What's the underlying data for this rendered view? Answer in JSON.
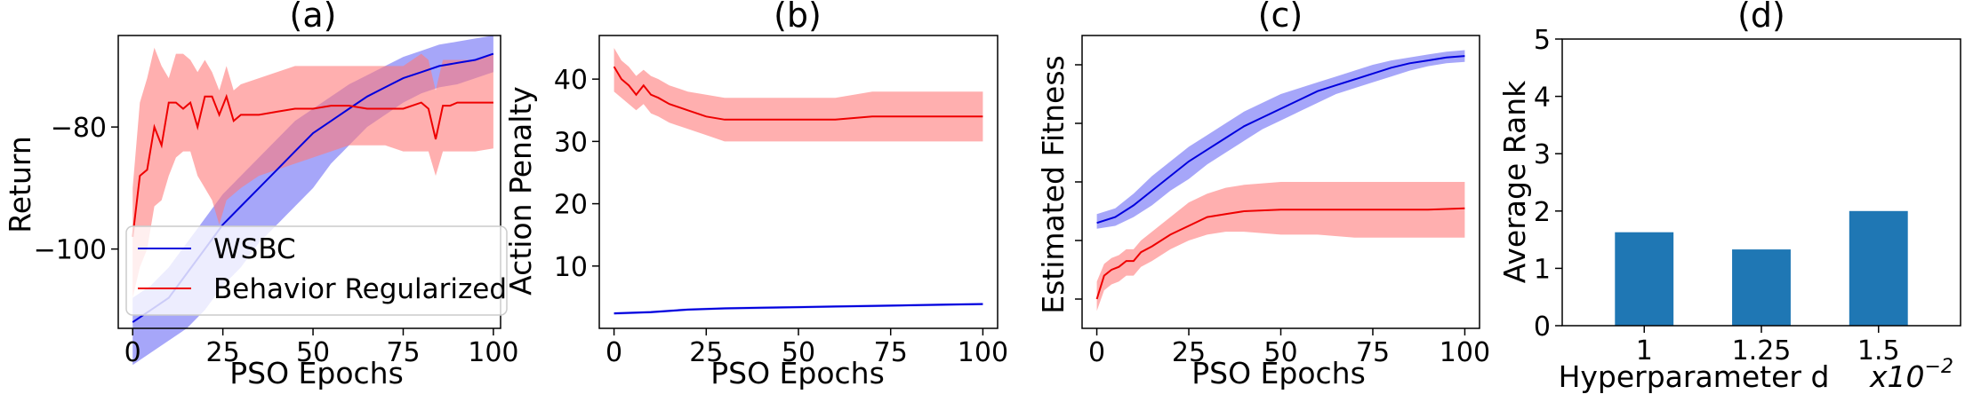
{
  "chart_data": [
    {
      "type": "line",
      "title": "(a)",
      "xlabel": "PSO Epochs",
      "ylabel": "Return",
      "xlim": [
        -4,
        102
      ],
      "ylim": [
        -113,
        -65
      ],
      "xticks": [
        0,
        25,
        50,
        75,
        100
      ],
      "yticks": [
        -100,
        -80
      ],
      "tick_labels_x": [
        "0",
        "25",
        "50",
        "75",
        "100"
      ],
      "tick_labels_y": [
        "−100",
        "−80"
      ],
      "legend": {
        "placement": "lower-left"
      },
      "series": [
        {
          "name": "WSBC",
          "color": "#0000dd",
          "band_color": "#6a6af5",
          "x": [
            0,
            5,
            10,
            15,
            20,
            25,
            30,
            35,
            40,
            45,
            50,
            55,
            60,
            65,
            70,
            75,
            80,
            85,
            90,
            95,
            100
          ],
          "mean": [
            -112,
            -110,
            -108,
            -104,
            -100,
            -96,
            -93,
            -90,
            -87,
            -84,
            -81,
            -79,
            -77,
            -75,
            -73.5,
            -72,
            -71,
            -70,
            -69.5,
            -69,
            -68
          ],
          "lower": [
            -119,
            -117,
            -115,
            -113,
            -110,
            -106,
            -103,
            -99,
            -96,
            -93,
            -90,
            -86,
            -83,
            -80,
            -78,
            -76,
            -74.5,
            -73.5,
            -73,
            -72,
            -71
          ],
          "upper": [
            -108,
            -106,
            -103,
            -99,
            -95,
            -91,
            -88,
            -85,
            -82,
            -79,
            -77,
            -75,
            -73,
            -71.5,
            -70,
            -68.5,
            -67.5,
            -66.5,
            -66,
            -65.5,
            -65
          ]
        },
        {
          "name": "Behavior Regularized",
          "color": "#ee0000",
          "band_color": "#ff7a7a",
          "x": [
            0,
            2,
            4,
            6,
            8,
            10,
            12,
            14,
            16,
            18,
            20,
            22,
            24,
            26,
            28,
            30,
            35,
            40,
            45,
            50,
            55,
            60,
            65,
            70,
            75,
            80,
            82,
            84,
            86,
            88,
            90,
            95,
            100
          ],
          "mean": [
            -98,
            -88,
            -87,
            -80,
            -83,
            -76,
            -76,
            -77,
            -76,
            -80,
            -75,
            -75,
            -78,
            -75,
            -79,
            -78,
            -78,
            -77.5,
            -77,
            -77,
            -76.5,
            -76.5,
            -77,
            -77,
            -77,
            -76,
            -77,
            -82,
            -76.5,
            -76.5,
            -76,
            -76,
            -76
          ],
          "lower": [
            -108,
            -103,
            -100,
            -93,
            -92,
            -88,
            -85,
            -84,
            -84,
            -88,
            -90,
            -92,
            -96,
            -92,
            -91,
            -90,
            -88,
            -87,
            -86,
            -85,
            -84,
            -83,
            -83,
            -83,
            -84,
            -84,
            -84,
            -88,
            -84,
            -84,
            -84,
            -84,
            -83.5
          ],
          "upper": [
            -90,
            -76,
            -72,
            -67,
            -70,
            -72,
            -68,
            -68,
            -69,
            -71,
            -69,
            -71,
            -74,
            -70,
            -74,
            -73,
            -72,
            -71,
            -70,
            -70,
            -70,
            -70,
            -70,
            -70,
            -70,
            -68,
            -69,
            -74,
            -69,
            -69,
            -69,
            -69,
            -68
          ]
        }
      ]
    },
    {
      "type": "line",
      "title": "(b)",
      "xlabel": "PSO Epochs",
      "ylabel": "Action Penalty",
      "xlim": [
        -4,
        104
      ],
      "ylim": [
        0,
        47
      ],
      "xticks": [
        0,
        25,
        50,
        75,
        100
      ],
      "yticks": [
        10,
        20,
        30,
        40
      ],
      "tick_labels_x": [
        "0",
        "25",
        "50",
        "75",
        "100"
      ],
      "tick_labels_y": [
        "10",
        "20",
        "30",
        "40"
      ],
      "series": [
        {
          "name": "",
          "color": "#0000dd",
          "band_color": "#6a6af5",
          "x": [
            0,
            10,
            20,
            30,
            40,
            50,
            60,
            70,
            80,
            90,
            100
          ],
          "mean": [
            2.4,
            2.6,
            3.0,
            3.2,
            3.3,
            3.4,
            3.5,
            3.6,
            3.7,
            3.8,
            3.9
          ],
          "lower": [
            2.2,
            2.4,
            2.8,
            3.0,
            3.1,
            3.2,
            3.3,
            3.4,
            3.5,
            3.6,
            3.7
          ],
          "upper": [
            2.6,
            2.8,
            3.2,
            3.4,
            3.5,
            3.6,
            3.7,
            3.8,
            3.9,
            4.0,
            4.1
          ]
        },
        {
          "name": "",
          "color": "#ee0000",
          "band_color": "#ff7a7a",
          "x": [
            0,
            2,
            4,
            6,
            8,
            10,
            12,
            15,
            20,
            25,
            30,
            40,
            50,
            60,
            70,
            80,
            90,
            100
          ],
          "mean": [
            42,
            40,
            39,
            37.5,
            39,
            37.5,
            37,
            36,
            35,
            34,
            33.5,
            33.5,
            33.5,
            33.5,
            34,
            34,
            34,
            34
          ],
          "lower": [
            38,
            37,
            36,
            35,
            36,
            34.5,
            34,
            33,
            32,
            31,
            30,
            30,
            30,
            30,
            30,
            30,
            30,
            30
          ],
          "upper": [
            45,
            43,
            42,
            40.5,
            41.5,
            40.5,
            40,
            39,
            38,
            37.5,
            37,
            37,
            37,
            37,
            38,
            38,
            38,
            38
          ]
        }
      ]
    },
    {
      "type": "line",
      "title": "(c)",
      "xlabel": "PSO Epochs",
      "ylabel": "Estimated Fitness",
      "xlim": [
        -4,
        104
      ],
      "ylim": [
        0,
        100
      ],
      "xticks": [
        0,
        25,
        50,
        75,
        100
      ],
      "yticks": [
        10,
        30,
        50,
        70,
        90
      ],
      "tick_labels_x": [
        "0",
        "25",
        "50",
        "75",
        "100"
      ],
      "tick_labels_y": [],
      "series": [
        {
          "name": "",
          "color": "#0000dd",
          "band_color": "#6a6af5",
          "x": [
            0,
            5,
            10,
            15,
            20,
            25,
            30,
            35,
            40,
            45,
            50,
            55,
            60,
            65,
            70,
            75,
            80,
            85,
            90,
            95,
            100
          ],
          "mean": [
            36,
            38,
            42,
            47,
            52,
            57,
            61,
            65,
            69,
            72,
            75,
            78,
            81,
            83,
            85,
            87,
            89,
            90.5,
            91.5,
            92.5,
            93
          ],
          "lower": [
            34,
            35,
            38,
            42,
            47,
            51,
            56,
            60,
            64,
            68,
            71,
            74,
            77,
            80,
            82,
            84,
            86,
            88,
            89.5,
            90.5,
            91
          ],
          "upper": [
            39,
            41,
            46,
            52,
            57,
            62,
            66,
            70,
            74,
            77,
            80,
            82,
            84,
            86,
            88,
            90,
            91.5,
            92.5,
            93.5,
            94.5,
            95
          ]
        },
        {
          "name": "",
          "color": "#ee0000",
          "band_color": "#ff7a7a",
          "x": [
            0,
            2,
            4,
            6,
            8,
            10,
            12,
            15,
            20,
            25,
            30,
            35,
            40,
            50,
            60,
            70,
            80,
            90,
            100
          ],
          "mean": [
            10,
            18,
            20,
            21,
            23,
            23,
            26,
            28,
            32,
            35,
            38,
            39,
            40,
            40.5,
            40.5,
            40.5,
            40.5,
            40.5,
            41
          ],
          "lower": [
            6,
            13,
            15,
            16,
            18,
            18,
            21,
            23,
            27,
            30,
            32,
            33,
            33,
            32,
            32,
            31,
            31,
            31,
            31
          ],
          "upper": [
            16,
            22,
            24,
            25,
            27,
            27,
            30,
            33,
            38,
            43,
            46,
            48,
            49,
            50,
            50,
            50,
            50,
            50,
            50
          ]
        }
      ]
    },
    {
      "type": "bar",
      "title": "(d)",
      "xlabel": "Hyperparameter d",
      "ylabel": "Average Rank",
      "x_multiplier_label": "x10",
      "x_multiplier_exp": "−2",
      "categories": [
        "1",
        "1.25",
        "1.5"
      ],
      "values": [
        1.63,
        1.33,
        2.0
      ],
      "ylim": [
        0,
        5
      ],
      "yticks": [
        0,
        1,
        2,
        3,
        4,
        5
      ],
      "tick_labels_y": [
        "0",
        "1",
        "2",
        "3",
        "4",
        "5"
      ],
      "color": "#1f77b4"
    }
  ]
}
